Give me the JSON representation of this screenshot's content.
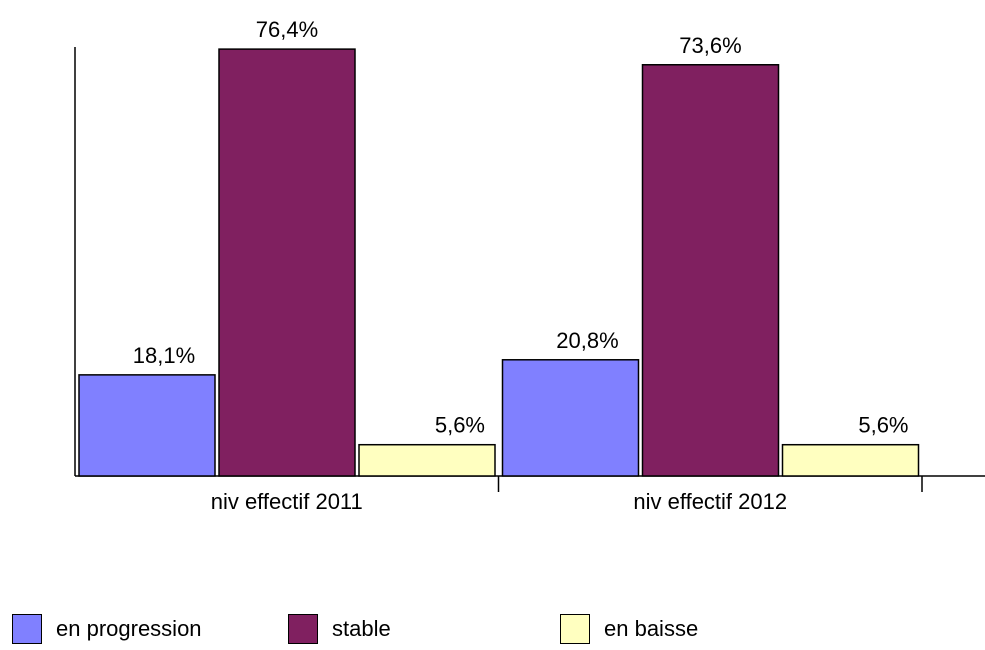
{
  "chart_data": {
    "type": "bar",
    "categories": [
      "niv effectif 2011",
      "niv effectif 2012"
    ],
    "series": [
      {
        "name": "en progression",
        "values": [
          18.1,
          20.8
        ],
        "labels": [
          "18,1%",
          "20,8%"
        ],
        "color": "#8080ff"
      },
      {
        "name": "stable",
        "values": [
          76.4,
          73.6
        ],
        "labels": [
          "76,4%",
          "73,6%"
        ],
        "color": "#802060"
      },
      {
        "name": "en baisse",
        "values": [
          5.6,
          5.6
        ],
        "labels": [
          "5,6%",
          "5,6%"
        ],
        "color": "#ffffc0"
      }
    ],
    "title": "",
    "xlabel": "",
    "ylabel": "",
    "ylim": [
      0,
      80
    ],
    "grid": false,
    "legend_position": "bottom"
  }
}
